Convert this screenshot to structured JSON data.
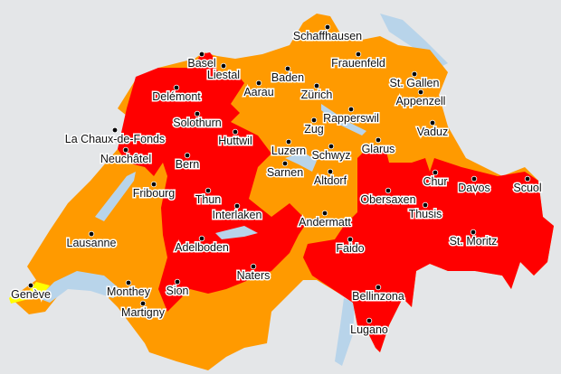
{
  "colors": {
    "background": "#e4e6e8",
    "orange": "#ff9a00",
    "red": "#ff0000",
    "yellow": "#ffff00",
    "lake": "#b8d4ea"
  },
  "cities": [
    {
      "name": "Schaffhausen"
    },
    {
      "name": "Basel"
    },
    {
      "name": "Liestal"
    },
    {
      "name": "Delémont"
    },
    {
      "name": "Aarau"
    },
    {
      "name": "Baden"
    },
    {
      "name": "Zürich"
    },
    {
      "name": "Frauenfeld"
    },
    {
      "name": "St. Gallen"
    },
    {
      "name": "Appenzell"
    },
    {
      "name": "Rapperswil"
    },
    {
      "name": "Zug"
    },
    {
      "name": "Vaduz"
    },
    {
      "name": "Solothurn"
    },
    {
      "name": "Huttwil"
    },
    {
      "name": "La Chaux-de-Fonds"
    },
    {
      "name": "Neuchâtel"
    },
    {
      "name": "Luzern"
    },
    {
      "name": "Schwyz"
    },
    {
      "name": "Glarus"
    },
    {
      "name": "Bern"
    },
    {
      "name": "Sarnen"
    },
    {
      "name": "Altdorf"
    },
    {
      "name": "Chur"
    },
    {
      "name": "Davos"
    },
    {
      "name": "Scuol"
    },
    {
      "name": "Fribourg"
    },
    {
      "name": "Thun"
    },
    {
      "name": "Obersaxen"
    },
    {
      "name": "Interlaken"
    },
    {
      "name": "Thusis"
    },
    {
      "name": "Andermatt"
    },
    {
      "name": "Lausanne"
    },
    {
      "name": "St. Moritz"
    },
    {
      "name": "Adelboden"
    },
    {
      "name": "Faido"
    },
    {
      "name": "Naters"
    },
    {
      "name": "Monthey"
    },
    {
      "name": "Sion"
    },
    {
      "name": "Genève"
    },
    {
      "name": "Martigny"
    },
    {
      "name": "Bellinzona"
    },
    {
      "name": "Lugano"
    }
  ]
}
